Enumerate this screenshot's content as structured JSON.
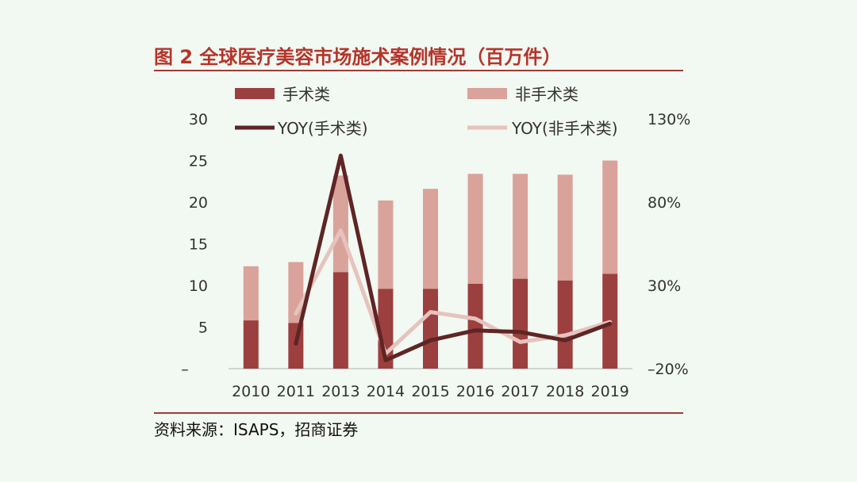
{
  "figure": {
    "title": "图 2 全球医疗美容市场施术案例情况（百万件）",
    "source": "资料来源：ISAPS，招商证券"
  },
  "chart_data": {
    "type": "bar",
    "title": "图 2 全球医疗美容市场施术案例情况（百万件）",
    "categories": [
      "2010",
      "2011",
      "2013",
      "2014",
      "2015",
      "2016",
      "2017",
      "2018",
      "2019"
    ],
    "stacked": true,
    "series": [
      {
        "name": "手术类",
        "type": "bar",
        "axis": "left",
        "color": "#9c3f3f",
        "values": [
          5.8,
          5.5,
          11.6,
          9.6,
          9.6,
          10.2,
          10.8,
          10.6,
          11.4
        ]
      },
      {
        "name": "非手术类",
        "type": "bar",
        "axis": "left",
        "color": "#d9a29b",
        "values": [
          6.5,
          7.3,
          11.6,
          10.6,
          12.0,
          13.2,
          12.6,
          12.7,
          13.6
        ]
      },
      {
        "name": "YOY(手术类)",
        "type": "line",
        "axis": "right",
        "color": "#5e2524",
        "values": [
          null,
          -5,
          108,
          -15,
          -3,
          3,
          2,
          -3,
          7
        ]
      },
      {
        "name": "YOY(非手术类)",
        "type": "line",
        "axis": "right",
        "color": "#e6c3bd",
        "values": [
          null,
          13,
          63,
          -11,
          14,
          10,
          -4,
          0,
          8
        ]
      }
    ],
    "y_left": {
      "min": 0,
      "max": 30,
      "ticks": [
        30,
        25,
        20,
        15,
        10,
        5
      ],
      "zero_label": "–"
    },
    "y_right": {
      "min": -20,
      "max": 130,
      "ticks": [
        "130%",
        "80%",
        "30%",
        "–20%"
      ],
      "tick_values": [
        130,
        80,
        30,
        -20
      ]
    },
    "legend": {
      "position": "top"
    }
  }
}
